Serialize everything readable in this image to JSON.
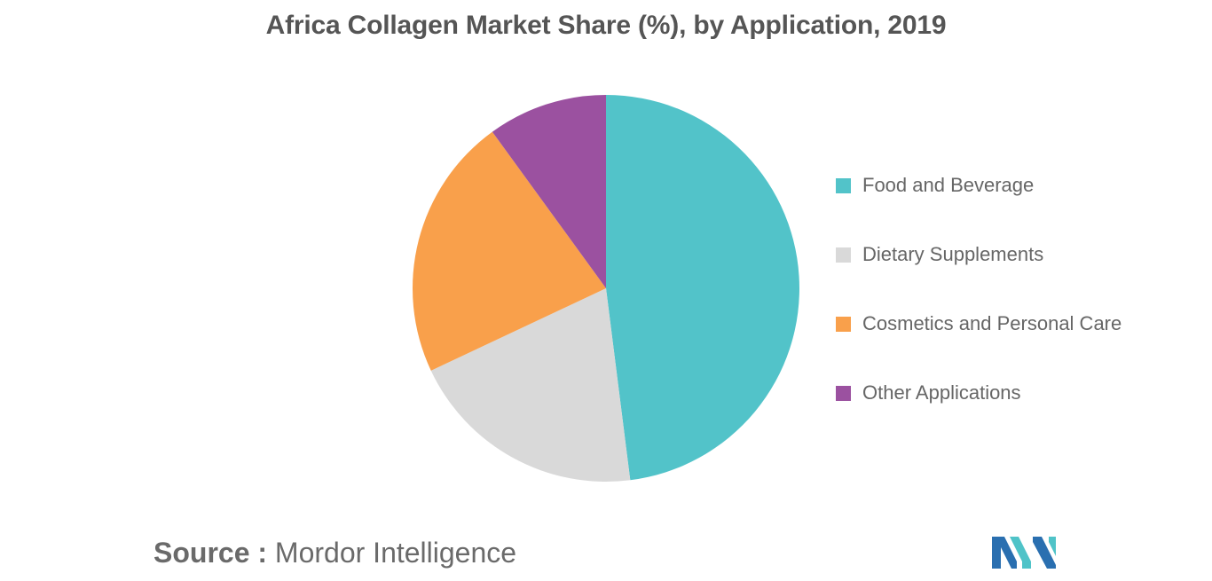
{
  "chart_data": {
    "type": "pie",
    "title": "Africa Collagen Market Share (%), by Application, 2019",
    "categories": [
      "Food and Beverage",
      "Dietary Supplements",
      "Cosmetics and Personal Care",
      "Other Applications"
    ],
    "values": [
      48,
      20,
      22,
      10
    ],
    "unit": "%",
    "colors": [
      "#52c3c9",
      "#d9d9d9",
      "#f9a04b",
      "#9b51a0"
    ],
    "legend_position": "right"
  },
  "source": {
    "label": "Source :",
    "text": "Mordor Intelligence"
  },
  "logo": {
    "icon": "mordor-intelligence-logo",
    "colors": [
      "#2a6fb0",
      "#4fc3c8"
    ]
  }
}
